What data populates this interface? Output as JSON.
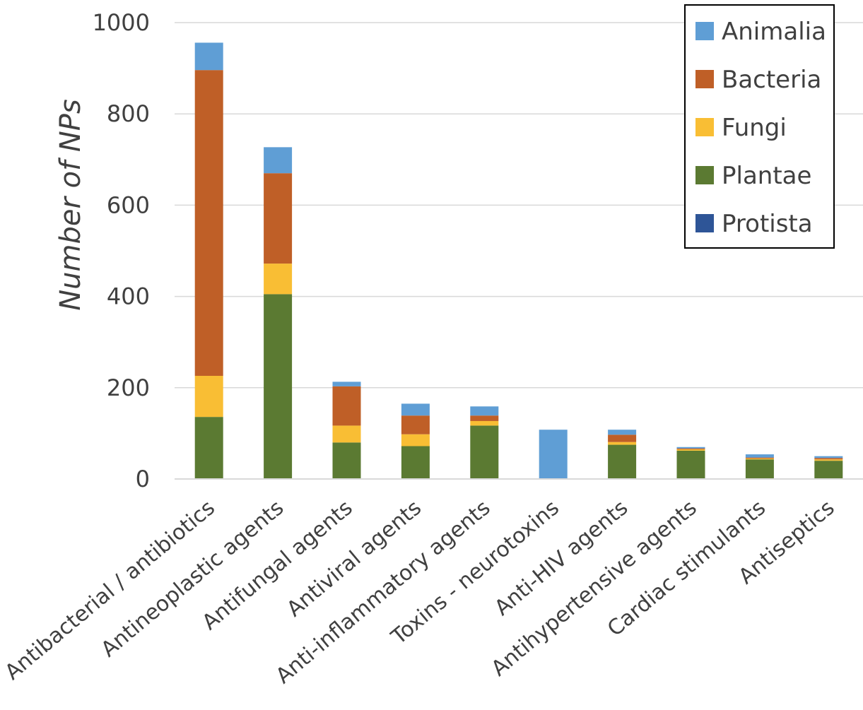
{
  "chart_data": {
    "type": "bar",
    "stacked": true,
    "title": "",
    "xlabel": "",
    "ylabel": "Number of NPs",
    "ylim": [
      0,
      1000
    ],
    "yticks": [
      0,
      200,
      400,
      600,
      800,
      1000
    ],
    "grid": true,
    "legend_position": "top-right",
    "categories": [
      "Antibacterial / antibiotics",
      "Antineoplastic agents",
      "Antifungal agents",
      "Antiviral agents",
      "Anti-inflammatory agents",
      "Toxins - neurotoxins",
      "Anti-HIV agents",
      "Antihypertensive agents",
      "Cardiac stimulants",
      "Antiseptics"
    ],
    "series": [
      {
        "name": "Plantae",
        "color": "#5B7A32",
        "values": [
          136,
          405,
          80,
          72,
          117,
          0,
          75,
          62,
          43,
          40
        ]
      },
      {
        "name": "Fungi",
        "color": "#F9BE34",
        "values": [
          90,
          67,
          37,
          26,
          10,
          0,
          6,
          3,
          2,
          3
        ]
      },
      {
        "name": "Bacteria",
        "color": "#BF5F27",
        "values": [
          670,
          198,
          86,
          41,
          12,
          0,
          16,
          2,
          2,
          3
        ]
      },
      {
        "name": "Protista",
        "color": "#2E5597",
        "values": [
          0,
          0,
          0,
          0,
          0,
          0,
          0,
          0,
          0,
          0
        ]
      },
      {
        "name": "Animalia",
        "color": "#5F9ED5",
        "values": [
          60,
          57,
          10,
          26,
          20,
          108,
          11,
          3,
          7,
          4
        ]
      }
    ],
    "legend_order": [
      "Animalia",
      "Bacteria",
      "Fungi",
      "Plantae",
      "Protista"
    ]
  }
}
